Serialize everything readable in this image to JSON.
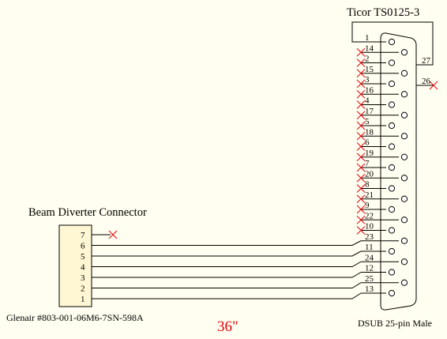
{
  "connector_title": "Ticor TS0125-3",
  "dsub_caption": "DSUB 25-pin Male",
  "beam_title": "Beam Diverter Connector",
  "beam_part": "Glenair #803-001-06M6-7SN-598A",
  "cable_length": "36\"",
  "colors": {
    "wire": "#000000",
    "shell_fill": "#fff7d4",
    "nc_mark": "#e8000a",
    "length_text": "#e8000a",
    "background": "#fffef0"
  },
  "dsub_pins": [
    {
      "pin": "1",
      "row": "top",
      "nc": false
    },
    {
      "pin": "14",
      "row": "bottom",
      "nc": true
    },
    {
      "pin": "2",
      "row": "top",
      "nc": true
    },
    {
      "pin": "15",
      "row": "bottom",
      "nc": true
    },
    {
      "pin": "3",
      "row": "top",
      "nc": true
    },
    {
      "pin": "16",
      "row": "bottom",
      "nc": true
    },
    {
      "pin": "4",
      "row": "top",
      "nc": true
    },
    {
      "pin": "17",
      "row": "bottom",
      "nc": true
    },
    {
      "pin": "5",
      "row": "top",
      "nc": true
    },
    {
      "pin": "18",
      "row": "bottom",
      "nc": true
    },
    {
      "pin": "6",
      "row": "top",
      "nc": true
    },
    {
      "pin": "19",
      "row": "bottom",
      "nc": true
    },
    {
      "pin": "7",
      "row": "top",
      "nc": true
    },
    {
      "pin": "20",
      "row": "bottom",
      "nc": true
    },
    {
      "pin": "8",
      "row": "top",
      "nc": true
    },
    {
      "pin": "21",
      "row": "bottom",
      "nc": true
    },
    {
      "pin": "9",
      "row": "top",
      "nc": true
    },
    {
      "pin": "22",
      "row": "bottom",
      "nc": true
    },
    {
      "pin": "10",
      "row": "top",
      "nc": true
    },
    {
      "pin": "23",
      "row": "bottom",
      "nc": false
    },
    {
      "pin": "11",
      "row": "top",
      "nc": false
    },
    {
      "pin": "24",
      "row": "bottom",
      "nc": false
    },
    {
      "pin": "12",
      "row": "top",
      "nc": false
    },
    {
      "pin": "25",
      "row": "bottom",
      "nc": false
    },
    {
      "pin": "13",
      "row": "top",
      "nc": false
    }
  ],
  "shell_pins": [
    {
      "pin": "27",
      "nc": false
    },
    {
      "pin": "26",
      "nc": true
    }
  ],
  "beam_pins": [
    {
      "pin": "7",
      "nc": true
    },
    {
      "pin": "6",
      "nc": false
    },
    {
      "pin": "5",
      "nc": false
    },
    {
      "pin": "4",
      "nc": false
    },
    {
      "pin": "3",
      "nc": false
    },
    {
      "pin": "2",
      "nc": false
    },
    {
      "pin": "1",
      "nc": false
    }
  ],
  "connections": [
    {
      "from": "1",
      "to": "27"
    },
    {
      "from": "6",
      "to": "23"
    },
    {
      "from": "5",
      "to": "11"
    },
    {
      "from": "4",
      "to": "24"
    },
    {
      "from": "3",
      "to": "12"
    },
    {
      "from": "2",
      "to": "25"
    },
    {
      "from": "1b",
      "to": "13"
    }
  ]
}
